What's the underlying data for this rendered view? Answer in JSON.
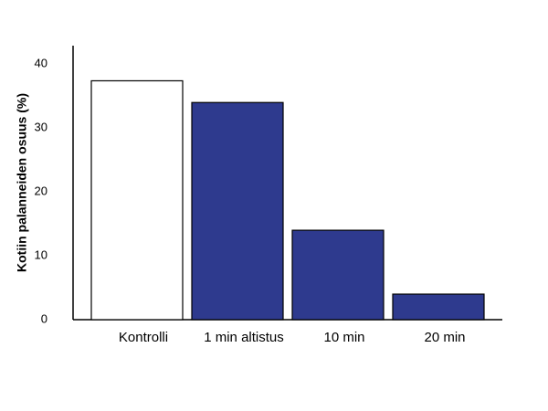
{
  "chart_data": {
    "type": "bar",
    "y_label": "Kotiin palanneiden osuus (%)",
    "categories": [
      "Kontrolli",
      "1 min altistus",
      "10 min",
      "20 min"
    ],
    "values": [
      37.4,
      34,
      14,
      4
    ],
    "colors": [
      "#ffffff",
      "#2e3a8e",
      "#2e3a8e",
      "#2e3a8e"
    ],
    "ylim": [
      0,
      42.9
    ],
    "yticks": [
      0,
      10,
      20,
      30,
      40
    ],
    "grid": false
  }
}
